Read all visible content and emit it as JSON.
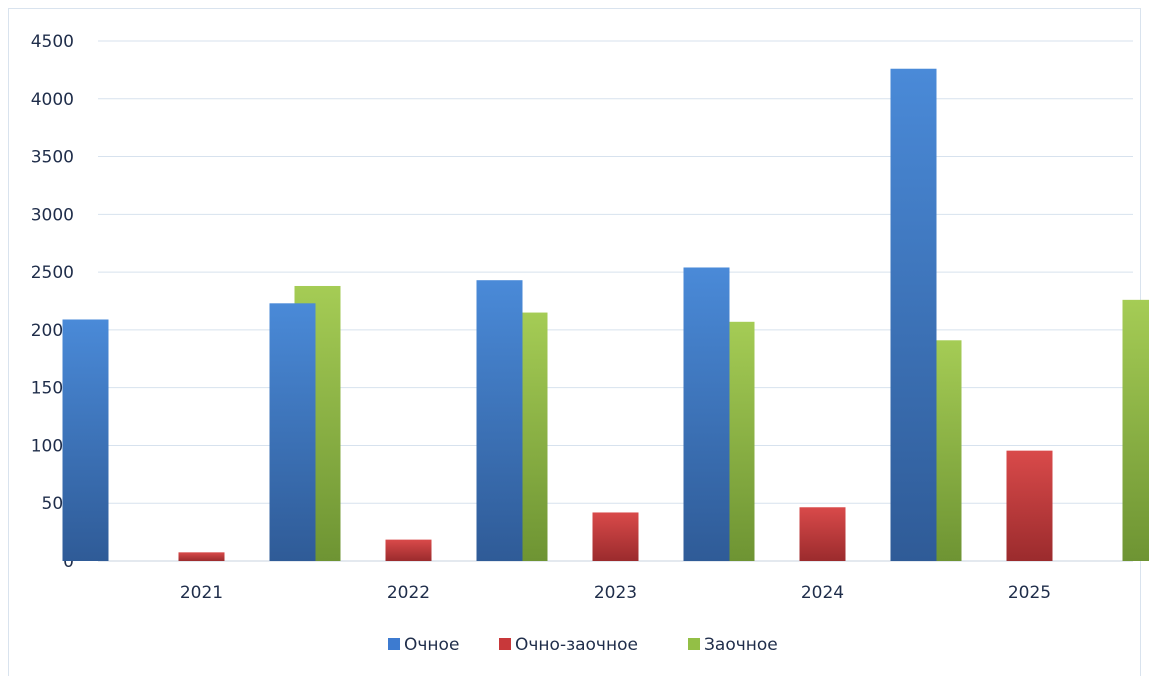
{
  "chart_data": {
    "type": "bar",
    "categories": [
      "2021",
      "2022",
      "2023",
      "2024",
      "2025"
    ],
    "series": [
      {
        "name": "Очное",
        "color": "#3d7bd0",
        "values": [
          2090,
          2230,
          2430,
          2540,
          4260
        ]
      },
      {
        "name": "Очно-заочное",
        "color": "#c8383a",
        "values": [
          75,
          185,
          420,
          465,
          955
        ]
      },
      {
        "name": "Заочное",
        "color": "#93bf46",
        "values": [
          2380,
          2150,
          2070,
          1910,
          2260
        ]
      }
    ],
    "ylim": [
      0,
      4500
    ],
    "yticks": [
      0,
      500,
      1000,
      1500,
      2000,
      2500,
      3000,
      3500,
      4000,
      4500
    ],
    "grid": true,
    "legend_position": "bottom"
  }
}
